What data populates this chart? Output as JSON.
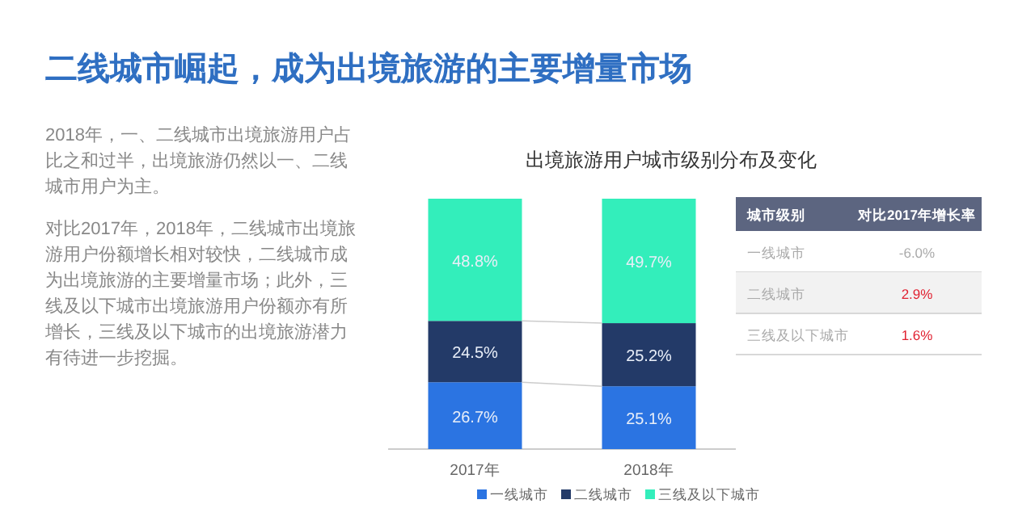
{
  "chart_data": [
    {
      "type": "other",
      "title": "二线城市崛起，成为出境旅游的主要增量市场",
      "annotations": [
        "2018年，一、二线城市出境旅游用户占比之和过半，出境旅游仍然以一、二线城市用户为主。",
        "对比2017年，2018年，二线城市出境旅游用户份额增长相对较快，二线城市成为出境旅游的主要增量市场；此外，三线及以下城市出境旅游用户份额亦有所增长，三线及以下城市的出境旅游潜力有待进一步挖掘。"
      ]
    },
    {
      "type": "bar",
      "title": "出境旅游用户城市级别分布及变化",
      "categories": [
        "2017年",
        "2018年"
      ],
      "stacked": true,
      "legend": "bottom",
      "series": [
        {
          "name": "一线城市",
          "color": "#2b74e2",
          "values": [
            26.7,
            25.1
          ],
          "value_labels": [
            "26.7%",
            "25.1%"
          ]
        },
        {
          "name": "二线城市",
          "color": "#233a68",
          "values": [
            24.5,
            25.2
          ],
          "value_labels": [
            "24.5%",
            "25.2%"
          ]
        },
        {
          "name": "三线及以下城市",
          "color": "#33eebb",
          "values": [
            48.8,
            49.7
          ],
          "value_labels": [
            "48.8%",
            "49.7%"
          ]
        }
      ]
    },
    {
      "type": "other",
      "annotations": [
        "城市级别",
        "对比2017年增长率",
        "一线城市",
        "-6.0%",
        "二线城市",
        "2.9%",
        "三线及以下城市",
        "1.6%"
      ],
      "colors": [
        "#ffffff",
        "#ffffff",
        "#aaaaaa",
        "#aaaaaa",
        "#aaaaaa",
        "#e02030",
        "#aaaaaa",
        "#e02030"
      ]
    }
  ]
}
